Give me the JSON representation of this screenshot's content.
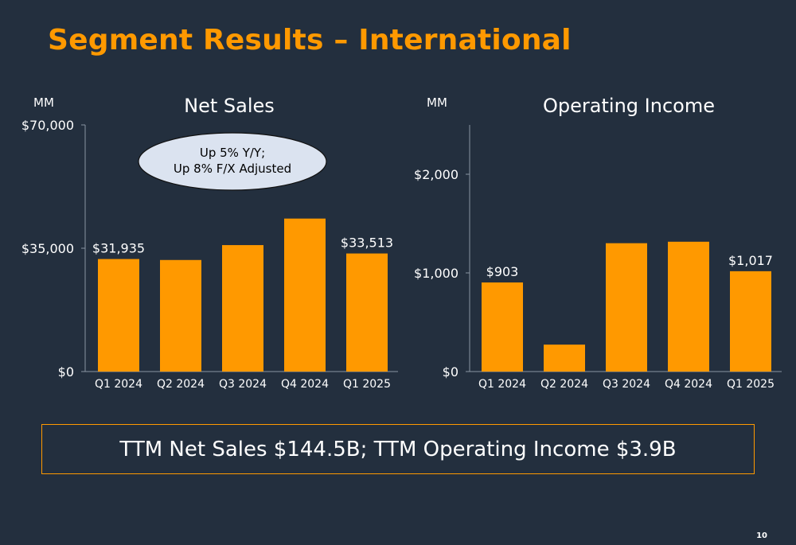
{
  "title": "Segment Results – International",
  "summary": "TTM Net Sales $144.5B; TTM Operating Income $3.9B",
  "page_number": "10",
  "colors": {
    "background": "#232f3e",
    "bar": "#ff9900",
    "accent": "#ff9900",
    "text": "#ffffff",
    "bubble_fill": "#dbe3f0"
  },
  "chart_data": [
    {
      "type": "bar",
      "title": "Net Sales",
      "unit_label": "MM",
      "categories": [
        "Q1 2024",
        "Q2 2024",
        "Q3 2024",
        "Q4 2024",
        "Q1 2025"
      ],
      "values": [
        31935,
        31663,
        35888,
        43420,
        33513
      ],
      "ylim": [
        0,
        70000
      ],
      "yticks": [
        0,
        35000,
        70000
      ],
      "ytick_labels": [
        "$0",
        "$35,000",
        "$70,000"
      ],
      "data_labels": [
        "$31,935",
        "",
        "",
        "",
        "$33,513"
      ],
      "annotation": {
        "line1": "Up 5% Y/Y;",
        "line2": "Up 8% F/X Adjusted"
      },
      "grid": false
    },
    {
      "type": "bar",
      "title": "Operating Income",
      "unit_label": "MM",
      "categories": [
        "Q1 2024",
        "Q2 2024",
        "Q3 2024",
        "Q4 2024",
        "Q1 2025"
      ],
      "values": [
        903,
        273,
        1301,
        1316,
        1017
      ],
      "ylim": [
        0,
        2500
      ],
      "yticks": [
        0,
        1000,
        2000
      ],
      "ytick_labels": [
        "$0",
        "$1,000",
        "$2,000"
      ],
      "data_labels": [
        "$903",
        "",
        "",
        "",
        "$1,017"
      ],
      "grid": false
    }
  ]
}
